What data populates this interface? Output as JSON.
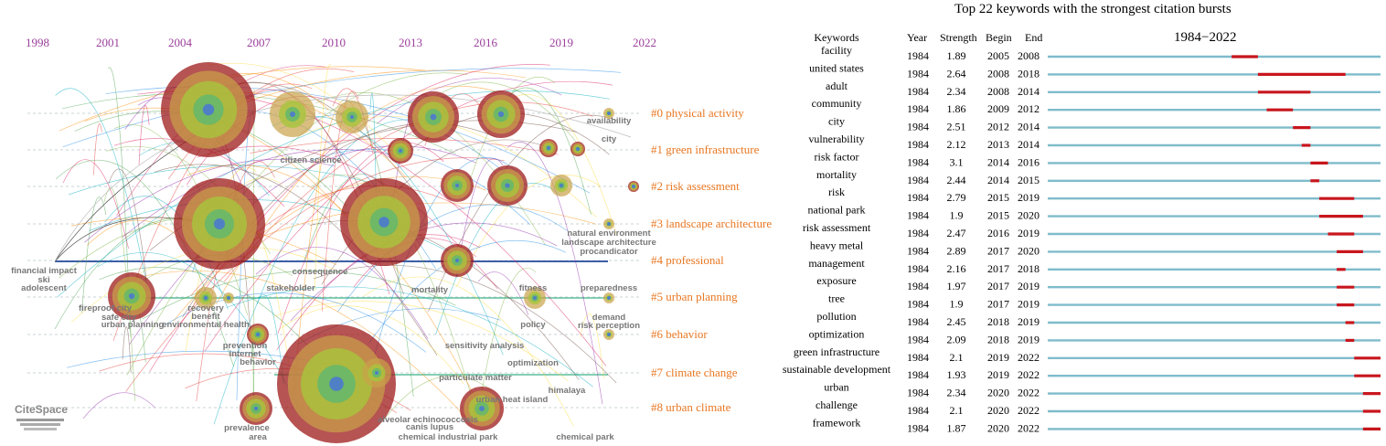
{
  "timeline": {
    "years": [
      "1998",
      "2001",
      "2004",
      "2007",
      "2010",
      "2013",
      "2016",
      "2019",
      "2022"
    ],
    "clusters": [
      "#0 physical activity",
      "#1 green infrastructure",
      "#2 risk assessment",
      "#3 landscape architecture",
      "#4 professional",
      "#5 urban planning",
      "#6 behavior",
      "#7 climate change",
      "#8 urban climate"
    ],
    "keywords": [
      "availability",
      "city",
      "citizen science",
      "natural environment",
      "landscape architecture",
      "procandicator",
      "preparedness",
      "demand",
      "risk perception",
      "financial impact",
      "ski",
      "adolescent",
      "fireproof city",
      "safe city",
      "urban planning",
      "recovery",
      "benefit",
      "environmental health",
      "prevention",
      "internet",
      "behavior",
      "consequence",
      "stakeholder",
      "mortality",
      "fitness",
      "policy",
      "sensitivity analysis",
      "optimization",
      "alveolar echinococcosis",
      "canis lupus",
      "chemical industrial park",
      "chemical park",
      "particulate matter",
      "prevalence",
      "area",
      "urban heat island",
      "himalaya"
    ],
    "logo": "CiteSpace"
  },
  "chart_data": {
    "type": "table",
    "title": "Top 22 keywords with the strongest citation bursts",
    "subtitle": "1984−2022",
    "columns": [
      "Keywords",
      "Year",
      "Strength",
      "Begin",
      "End",
      "1984−2022"
    ],
    "range": [
      1984,
      2022
    ],
    "rows": [
      {
        "keyword": "facility",
        "year": "1984",
        "strength": "1.89",
        "begin": "2005",
        "end": "2008"
      },
      {
        "keyword": "united states",
        "year": "1984",
        "strength": "2.64",
        "begin": "2008",
        "end": "2018"
      },
      {
        "keyword": "adult",
        "year": "1984",
        "strength": "2.34",
        "begin": "2008",
        "end": "2014"
      },
      {
        "keyword": "community",
        "year": "1984",
        "strength": "1.86",
        "begin": "2009",
        "end": "2012"
      },
      {
        "keyword": "city",
        "year": "1984",
        "strength": "2.51",
        "begin": "2012",
        "end": "2014"
      },
      {
        "keyword": "vulnerability",
        "year": "1984",
        "strength": "2.12",
        "begin": "2013",
        "end": "2014"
      },
      {
        "keyword": "risk factor",
        "year": "1984",
        "strength": "3.1",
        "begin": "2014",
        "end": "2016"
      },
      {
        "keyword": "mortality",
        "year": "1984",
        "strength": "2.44",
        "begin": "2014",
        "end": "2015"
      },
      {
        "keyword": "risk",
        "year": "1984",
        "strength": "2.79",
        "begin": "2015",
        "end": "2019"
      },
      {
        "keyword": "national park",
        "year": "1984",
        "strength": "1.9",
        "begin": "2015",
        "end": "2020"
      },
      {
        "keyword": "risk assessment",
        "year": "1984",
        "strength": "2.47",
        "begin": "2016",
        "end": "2019"
      },
      {
        "keyword": "heavy metal",
        "year": "1984",
        "strength": "2.89",
        "begin": "2017",
        "end": "2020"
      },
      {
        "keyword": "management",
        "year": "1984",
        "strength": "2.16",
        "begin": "2017",
        "end": "2018"
      },
      {
        "keyword": "exposure",
        "year": "1984",
        "strength": "1.97",
        "begin": "2017",
        "end": "2019"
      },
      {
        "keyword": "tree",
        "year": "1984",
        "strength": "1.9",
        "begin": "2017",
        "end": "2019"
      },
      {
        "keyword": "pollution",
        "year": "1984",
        "strength": "2.45",
        "begin": "2018",
        "end": "2019"
      },
      {
        "keyword": "optimization",
        "year": "1984",
        "strength": "2.09",
        "begin": "2018",
        "end": "2019"
      },
      {
        "keyword": "green infrastructure",
        "year": "1984",
        "strength": "2.1",
        "begin": "2019",
        "end": "2022"
      },
      {
        "keyword": "sustainable development",
        "year": "1984",
        "strength": "1.93",
        "begin": "2019",
        "end": "2022"
      },
      {
        "keyword": "urban",
        "year": "1984",
        "strength": "2.34",
        "begin": "2020",
        "end": "2022"
      },
      {
        "keyword": "challenge",
        "year": "1984",
        "strength": "2.1",
        "begin": "2020",
        "end": "2022"
      },
      {
        "keyword": "framework",
        "year": "1984",
        "strength": "1.87",
        "begin": "2020",
        "end": "2022"
      }
    ],
    "colors": {
      "baseline": "#7fbccb",
      "burst": "#c8161d",
      "cluster_label": "#e87722",
      "year_label": "#9b3f9b"
    }
  }
}
